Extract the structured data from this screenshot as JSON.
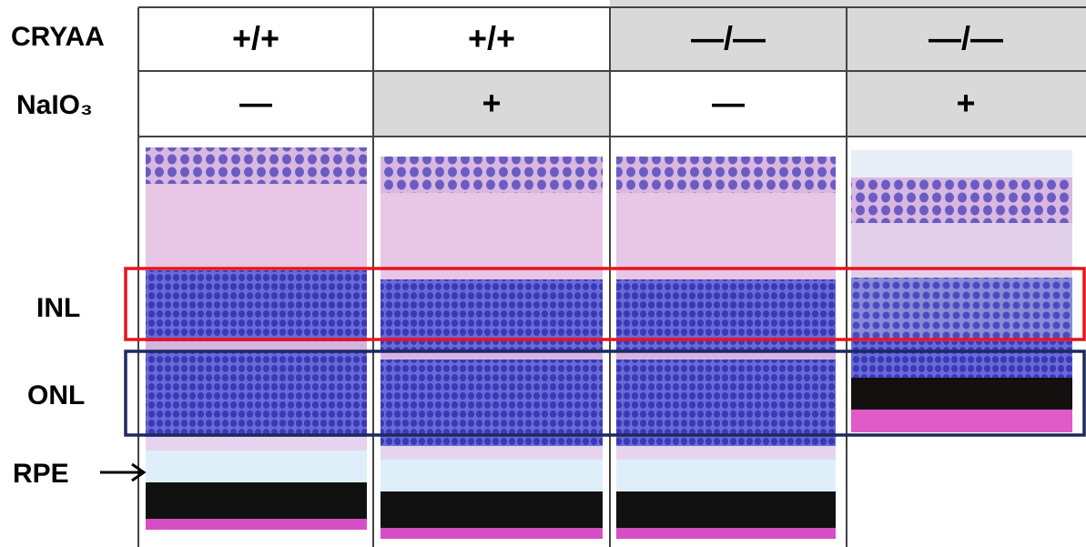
{
  "header": {
    "rows": [
      {
        "label": "CRYAA",
        "cells": [
          "+/+",
          "+/+",
          "—/—",
          "—/—"
        ]
      },
      {
        "label": "NaIO₃",
        "cells": [
          "—",
          "+",
          "—",
          "+"
        ]
      }
    ]
  },
  "layers": [
    "INL",
    "ONL",
    "RPE"
  ]
}
